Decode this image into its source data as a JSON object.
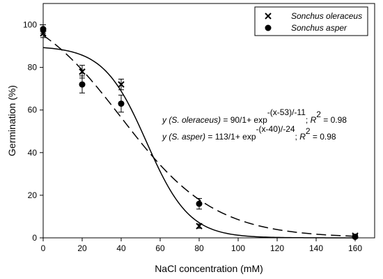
{
  "chart_data": {
    "type": "scatter",
    "xlabel": "NaCl concentration (mM)",
    "ylabel": "Germination (%)",
    "xlim": [
      0,
      170
    ],
    "ylim": [
      0,
      110
    ],
    "x_ticks": [
      0,
      20,
      40,
      60,
      80,
      100,
      120,
      140,
      160
    ],
    "y_ticks": [
      0,
      20,
      40,
      60,
      80,
      100
    ],
    "grid": false,
    "legend_position": "top-right",
    "series": [
      {
        "name": "Sonchus oleraceus",
        "marker": "x",
        "x": [
          0,
          20,
          40,
          80,
          160
        ],
        "y": [
          96,
          78,
          72,
          5.5,
          1
        ],
        "errors": [
          2,
          3,
          2.5,
          1,
          0.5
        ],
        "fit": {
          "type": "logistic",
          "a": 90,
          "x0": 53,
          "b": -11,
          "line": "solid"
        }
      },
      {
        "name": "Sonchus asper",
        "marker": "circle",
        "x": [
          0,
          20,
          40,
          80,
          160
        ],
        "y": [
          98,
          72,
          63,
          16,
          0.5
        ],
        "errors": [
          2,
          4,
          4,
          2.5,
          0.5
        ],
        "fit": {
          "type": "logistic",
          "a": 113,
          "x0": 40,
          "b": -24,
          "line": "dashed"
        }
      }
    ],
    "equations": [
      {
        "prefix_italic": "y (S. oleraceus)",
        "body": " = 90/1+ exp",
        "exponent": "-(x-53)/-11",
        "sep": "; ",
        "r_label": "R",
        "r_exp": "2",
        "r_value": " = 0.98"
      },
      {
        "prefix_italic": "y (S. asper)",
        "body": " = 113/1+ exp",
        "exponent": "-(x-40)/-24",
        "sep": "; ",
        "r_label": "R",
        "r_exp": "2",
        "r_value": " = 0.98"
      }
    ]
  }
}
